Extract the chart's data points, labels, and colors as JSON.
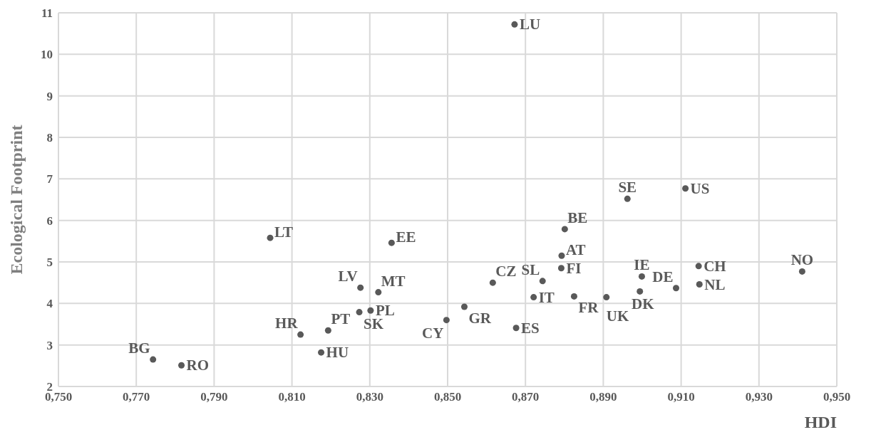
{
  "chart_data": {
    "type": "scatter",
    "xlabel": "HDI",
    "ylabel": "Ecological Footprint",
    "x": [
      0.8672,
      0.7743,
      0.7816,
      0.8044,
      0.8356,
      0.8276,
      0.8322,
      0.8193,
      0.8273,
      0.8302,
      0.8122,
      0.8175,
      0.8497,
      0.8543,
      0.8616,
      0.8676,
      0.8721,
      0.8744,
      0.8792,
      0.8793,
      0.8801,
      0.8825,
      0.8908,
      0.8962,
      0.9111,
      0.8999,
      0.8994,
      0.9087,
      0.9145,
      0.9147,
      0.9411
    ],
    "values": [
      10.72,
      2.65,
      2.51,
      5.58,
      5.46,
      4.38,
      4.27,
      3.35,
      3.79,
      3.83,
      3.25,
      2.82,
      3.6,
      3.92,
      4.5,
      3.41,
      4.15,
      4.54,
      4.85,
      5.15,
      5.79,
      4.17,
      4.15,
      6.52,
      6.77,
      4.65,
      4.29,
      4.37,
      4.9,
      4.46,
      4.77
    ],
    "value_labels": [
      "LU",
      "BG",
      "RO",
      "LT",
      "EE",
      "LV",
      "MT",
      "PT",
      "SK",
      "PL",
      "HR",
      "HU",
      "CY",
      "GR",
      "CZ",
      "ES",
      "IT",
      "SL",
      "FI",
      "AT",
      "BE",
      "FR",
      "UK",
      "SE",
      "US",
      "IE",
      "DK",
      "DE",
      "CH",
      "NL",
      "NO"
    ],
    "color": "#595959",
    "marker": "circle",
    "xlim": [
      0.75,
      0.95
    ],
    "xticks": [
      {
        "value": 0.75,
        "label": "0,750"
      },
      {
        "value": 0.77,
        "label": "0,770"
      },
      {
        "value": 0.79,
        "label": "0,790"
      },
      {
        "value": 0.81,
        "label": "0,810"
      },
      {
        "value": 0.83,
        "label": "0,830"
      },
      {
        "value": 0.85,
        "label": "0,850"
      },
      {
        "value": 0.87,
        "label": "0,870"
      },
      {
        "value": 0.89,
        "label": "0,890"
      },
      {
        "value": 0.91,
        "label": "0,910"
      },
      {
        "value": 0.93,
        "label": "0,930"
      },
      {
        "value": 0.95,
        "label": "0,950"
      }
    ],
    "ylim": [
      2,
      11
    ],
    "yticks": [
      2,
      3,
      4,
      5,
      6,
      7,
      8,
      9,
      10,
      11
    ],
    "grid": true
  }
}
